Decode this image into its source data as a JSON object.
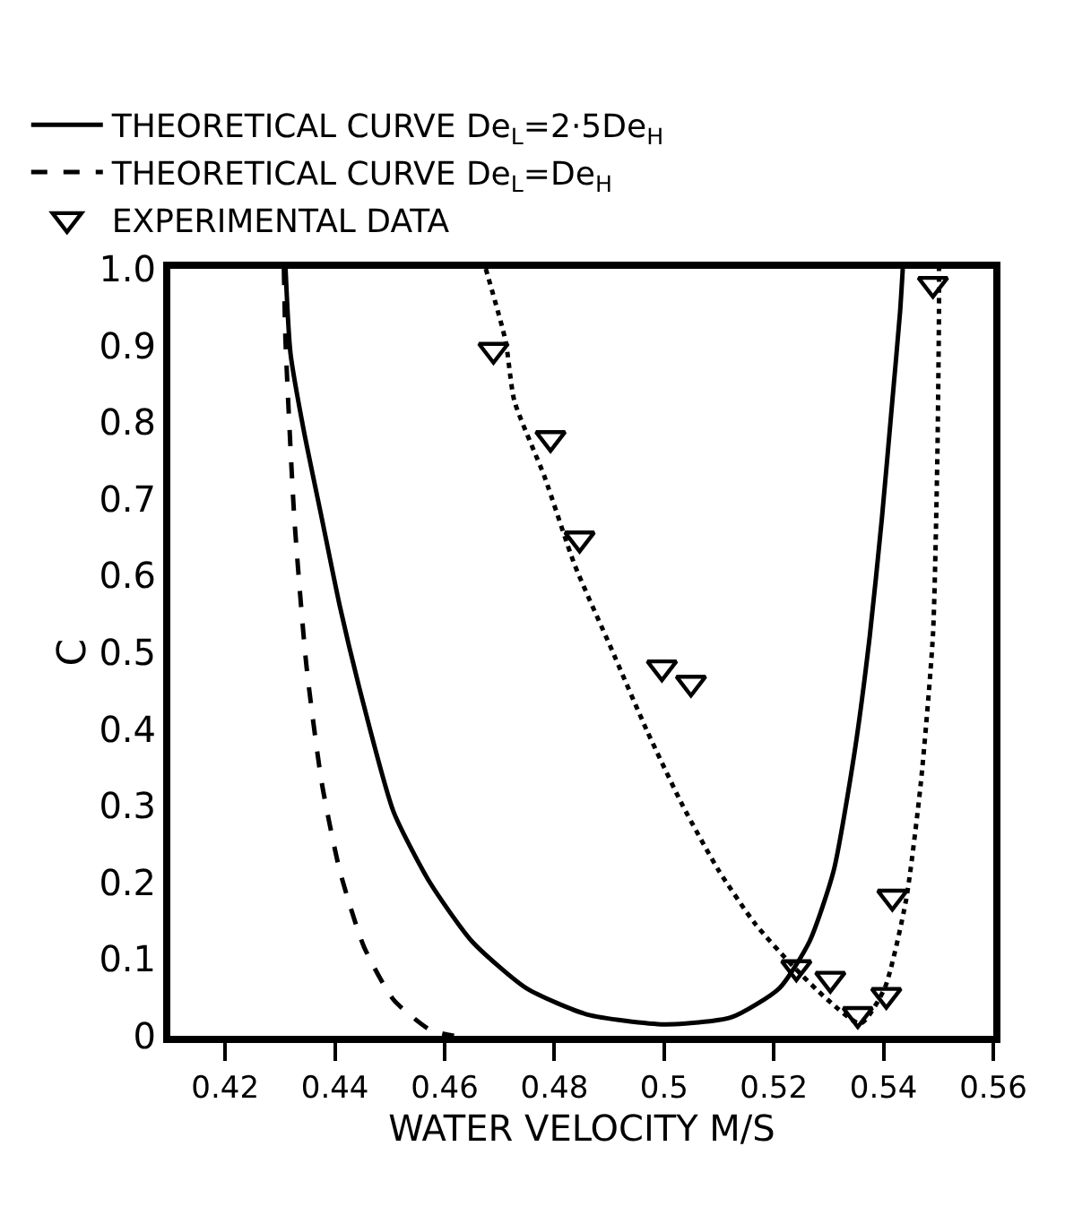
{
  "chart_data": {
    "type": "line",
    "xlabel": "WATER VELOCITY M/S",
    "ylabel": "C",
    "xlim": [
      0.41,
      0.56
    ],
    "ylim": [
      0,
      1.0
    ],
    "xticks": [
      0.42,
      0.44,
      0.46,
      0.48,
      0.5,
      0.52,
      0.54,
      0.56
    ],
    "yticks": [
      0,
      0.1,
      0.2,
      0.3,
      0.4,
      0.5,
      0.6,
      0.7,
      0.8,
      0.9,
      {
        "value": 1,
        "label": "1.0"
      }
    ],
    "grid": false,
    "legend": "top",
    "series": [
      {
        "name": "THEORETICAL CURVE De$_{L}$=2·5De$_{H}$",
        "line_style": "solid",
        "marker": "none",
        "color": "#000000",
        "x": [
          0.431,
          0.4319,
          0.4343,
          0.4376,
          0.4409,
          0.4453,
          0.4507,
          0.4573,
          0.465,
          0.4749,
          0.4859,
          0.5001,
          0.5122,
          0.521,
          0.5265,
          0.5309,
          0.5347,
          0.5375,
          0.5397,
          0.5416,
          0.543,
          0.5435
        ],
        "values": [
          1.0,
          0.89,
          0.79,
          0.675,
          0.56,
          0.43,
          0.292,
          0.2,
          0.123,
          0.062,
          0.028,
          0.015,
          0.024,
          0.062,
          0.123,
          0.215,
          0.369,
          0.522,
          0.675,
          0.828,
          0.943,
          1.0
        ]
      },
      {
        "name": "THEORETICAL CURVE De$_{L}$=De$_{H}$",
        "line_style": "dashed",
        "marker": "none",
        "color": "#000000",
        "x": [
          0.4307,
          0.431,
          0.4326,
          0.4348,
          0.4376,
          0.4409,
          0.4453,
          0.4507,
          0.4573,
          0.4617
        ],
        "values": [
          1.0,
          0.905,
          0.675,
          0.483,
          0.33,
          0.215,
          0.116,
          0.047,
          0.008,
          0.0
        ]
      },
      {
        "line_style": "dotted",
        "marker": "none",
        "color": "#000000",
        "x": [
          0.4675,
          0.4711,
          0.4727,
          0.4782,
          0.4837,
          0.4903,
          0.4968,
          0.5034,
          0.51,
          0.5166,
          0.5232,
          0.5298,
          0.5358,
          0.5402,
          0.5441,
          0.5468,
          0.549,
          0.5498,
          0.5501,
          0.5501
        ],
        "values": [
          1.0,
          0.906,
          0.828,
          0.729,
          0.614,
          0.506,
          0.399,
          0.3,
          0.215,
          0.146,
          0.093,
          0.047,
          0.016,
          0.062,
          0.177,
          0.33,
          0.522,
          0.752,
          0.943,
          1.0
        ]
      },
      {
        "name": "EXPERIMENTAL DATA",
        "type": "scatter",
        "marker": "triangle",
        "color": "#000000",
        "x": [
          0.4689,
          0.4793,
          0.4846,
          0.4996,
          0.5049,
          0.5241,
          0.5303,
          0.5353,
          0.5405,
          0.5416,
          0.549
        ],
        "values": [
          0.894,
          0.779,
          0.648,
          0.48,
          0.46,
          0.089,
          0.074,
          0.028,
          0.053,
          0.181,
          0.98
        ]
      }
    ]
  }
}
